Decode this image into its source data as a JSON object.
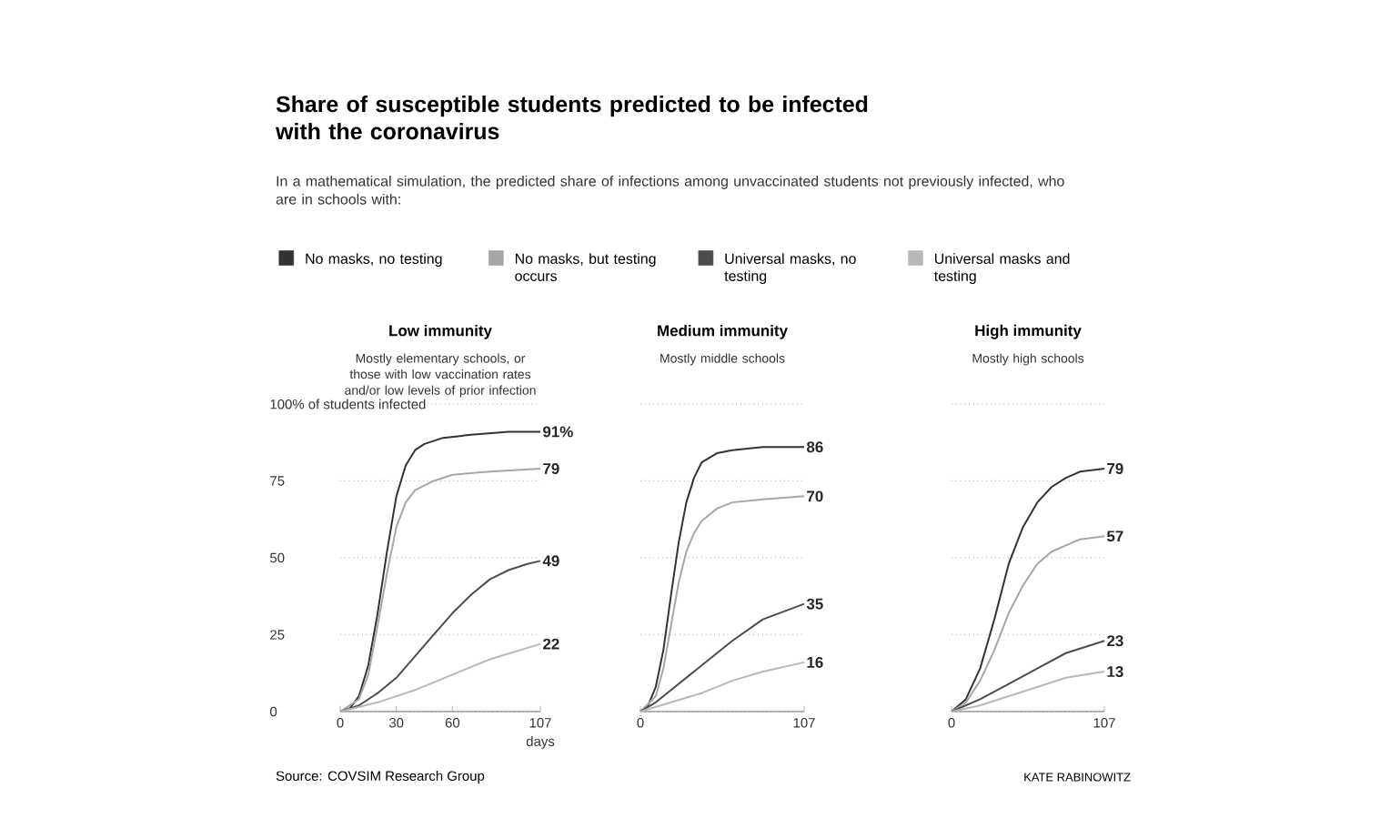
{
  "chart_data": [
    {
      "type": "other",
      "title": "Share of susceptible students predicted to be infected with the coronavirus",
      "subtitle": "In a mathematical simulation, the predicted share of infections among unvaccinated students not previously infected, who are in schools with:",
      "annotations": [
        "Source: COVSIM Research Group",
        "KATE RABINOWITZ"
      ]
    },
    {
      "type": "line",
      "title": "Low immunity",
      "subtitle": "Mostly elementary schools, or those with low vaccination rates and/or low levels of prior infection",
      "xlabel": "days",
      "xlim": [
        0,
        107
      ],
      "ylim": [
        0,
        100
      ],
      "xticks": [
        0,
        30,
        60,
        107
      ],
      "yticks": [
        0,
        25,
        50,
        75,
        {
          "value": 100,
          "label": "100% of students infected"
        }
      ],
      "grid": "y",
      "legend": "top",
      "series": [
        {
          "name": "No masks, no testing",
          "color": "#333333",
          "x": [
            0,
            5,
            10,
            15,
            20,
            25,
            30,
            35,
            40,
            45,
            55,
            70,
            90,
            107
          ],
          "values": [
            0,
            1,
            5,
            15,
            32,
            52,
            70,
            80,
            85,
            87,
            89,
            90,
            91,
            91
          ],
          "value_labels": [
            null,
            null,
            null,
            null,
            null,
            null,
            null,
            null,
            null,
            null,
            null,
            null,
            null,
            "91%"
          ]
        },
        {
          "name": "No masks, but testing occurs",
          "color": "#a6a6a6",
          "x": [
            0,
            10,
            15,
            20,
            25,
            30,
            35,
            40,
            50,
            60,
            80,
            107
          ],
          "values": [
            0,
            4,
            12,
            28,
            45,
            60,
            68,
            72,
            75,
            77,
            78,
            79
          ],
          "value_labels": [
            null,
            null,
            null,
            null,
            null,
            null,
            null,
            null,
            null,
            null,
            null,
            "79"
          ]
        },
        {
          "name": "Universal masks, no testing",
          "color": "#4d4d4d",
          "x": [
            0,
            10,
            20,
            30,
            40,
            50,
            60,
            70,
            80,
            90,
            100,
            107
          ],
          "values": [
            0,
            2,
            6,
            11,
            18,
            25,
            32,
            38,
            43,
            46,
            48,
            49
          ],
          "value_labels": [
            null,
            null,
            null,
            null,
            null,
            null,
            null,
            null,
            null,
            null,
            null,
            "49"
          ]
        },
        {
          "name": "Universal masks and testing",
          "color": "#b8b8b8",
          "x": [
            0,
            20,
            40,
            60,
            80,
            107
          ],
          "values": [
            0,
            3,
            7,
            12,
            17,
            22
          ],
          "value_labels": [
            null,
            null,
            null,
            null,
            null,
            "22"
          ]
        }
      ]
    },
    {
      "type": "line",
      "title": "Medium immunity",
      "subtitle": "Mostly middle schools",
      "xlim": [
        0,
        107
      ],
      "ylim": [
        0,
        100
      ],
      "xticks": [
        0,
        107
      ],
      "yticks": [
        0,
        25,
        50,
        75,
        100
      ],
      "grid": "y",
      "tick_labels": "x",
      "series": [
        {
          "color": "#333333",
          "x": [
            0,
            5,
            10,
            15,
            20,
            25,
            30,
            35,
            40,
            50,
            60,
            80,
            107
          ],
          "values": [
            0,
            2,
            8,
            20,
            38,
            55,
            68,
            76,
            81,
            84,
            85,
            86,
            86
          ],
          "value_labels": [
            null,
            null,
            null,
            null,
            null,
            null,
            null,
            null,
            null,
            null,
            null,
            null,
            "86"
          ]
        },
        {
          "color": "#a6a6a6",
          "x": [
            0,
            10,
            15,
            20,
            25,
            30,
            35,
            40,
            50,
            60,
            80,
            107
          ],
          "values": [
            0,
            5,
            14,
            28,
            42,
            52,
            58,
            62,
            66,
            68,
            69,
            70
          ],
          "value_labels": [
            null,
            null,
            null,
            null,
            null,
            null,
            null,
            null,
            null,
            null,
            null,
            "70"
          ]
        },
        {
          "color": "#4d4d4d",
          "x": [
            0,
            10,
            20,
            40,
            60,
            80,
            107
          ],
          "values": [
            0,
            3,
            7,
            15,
            23,
            30,
            35
          ],
          "value_labels": [
            null,
            null,
            null,
            null,
            null,
            null,
            "35"
          ]
        },
        {
          "color": "#b8b8b8",
          "x": [
            0,
            20,
            40,
            60,
            80,
            107
          ],
          "values": [
            0,
            3,
            6,
            10,
            13,
            16
          ],
          "value_labels": [
            null,
            null,
            null,
            null,
            null,
            "16"
          ]
        }
      ]
    },
    {
      "type": "line",
      "title": "High immunity",
      "subtitle": "Mostly high schools",
      "xlim": [
        0,
        107
      ],
      "ylim": [
        0,
        100
      ],
      "xticks": [
        0,
        107
      ],
      "yticks": [
        0,
        25,
        50,
        75,
        100
      ],
      "grid": "y",
      "tick_labels": "x",
      "series": [
        {
          "color": "#333333",
          "x": [
            0,
            10,
            20,
            30,
            40,
            50,
            60,
            70,
            80,
            90,
            107
          ],
          "values": [
            0,
            4,
            14,
            30,
            48,
            60,
            68,
            73,
            76,
            78,
            79
          ],
          "value_labels": [
            null,
            null,
            null,
            null,
            null,
            null,
            null,
            null,
            null,
            null,
            "79"
          ]
        },
        {
          "color": "#a6a6a6",
          "x": [
            0,
            10,
            20,
            30,
            40,
            50,
            60,
            70,
            80,
            90,
            107
          ],
          "values": [
            0,
            3,
            10,
            20,
            32,
            41,
            48,
            52,
            54,
            56,
            57
          ],
          "value_labels": [
            null,
            null,
            null,
            null,
            null,
            null,
            null,
            null,
            null,
            null,
            "57"
          ]
        },
        {
          "color": "#4d4d4d",
          "x": [
            0,
            20,
            40,
            60,
            80,
            107
          ],
          "values": [
            0,
            4,
            9,
            14,
            19,
            23
          ],
          "value_labels": [
            null,
            null,
            null,
            null,
            null,
            "23"
          ]
        },
        {
          "color": "#b8b8b8",
          "x": [
            0,
            20,
            40,
            60,
            80,
            107
          ],
          "values": [
            0,
            2,
            5,
            8,
            11,
            13
          ],
          "value_labels": [
            null,
            null,
            null,
            null,
            null,
            "13"
          ]
        }
      ]
    }
  ]
}
